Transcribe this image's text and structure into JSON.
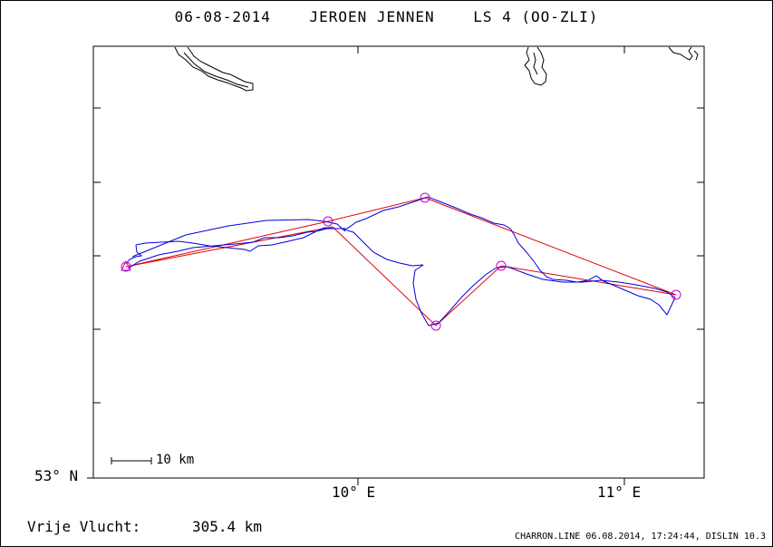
{
  "header": {
    "title": "06-08-2014    JEROEN JENNEN    LS 4 (OO-ZLI)"
  },
  "axes": {
    "y_label_bottom": "53° N",
    "x_tick_labels": [
      "10° E",
      "11° E"
    ]
  },
  "scale_bar": {
    "label": "10 km"
  },
  "summary": {
    "label": "Vrije Vlucht:",
    "distance": "305.4 km"
  },
  "footer": {
    "credit": "CHARRON.LINE 06.08.2014, 17:24:44, DISLIN 10.3"
  },
  "colors": {
    "track": "#0000dd",
    "task_line": "#e00000",
    "turnpoint": "#cc00cc",
    "coastline": "#000000"
  },
  "turnpoint_symbols": [
    "start-triangle",
    "circle",
    "circle",
    "circle",
    "circle",
    "circle"
  ]
}
